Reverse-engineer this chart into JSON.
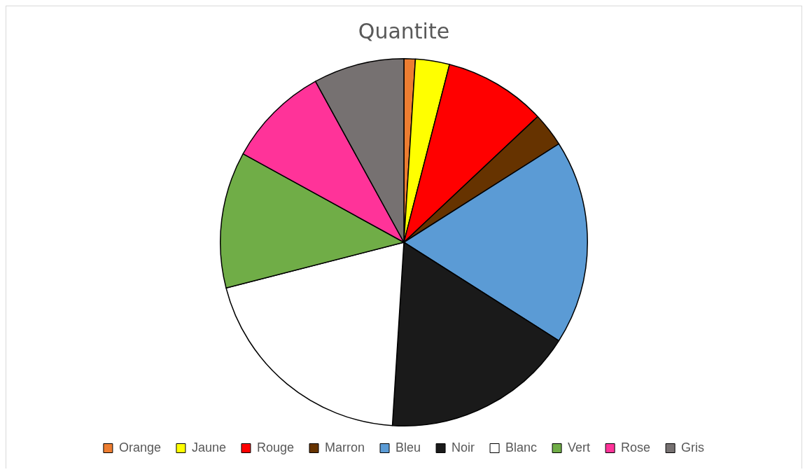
{
  "chart_data": {
    "type": "pie",
    "title": "Quantite",
    "categories": [
      "Orange",
      "Jaune",
      "Rouge",
      "Marron",
      "Bleu",
      "Noir",
      "Blanc",
      "Vert",
      "Rose",
      "Gris"
    ],
    "values": [
      1,
      3,
      9,
      3,
      18,
      17,
      20,
      12,
      9,
      8
    ],
    "colors": [
      "#ed7d31",
      "#ffff00",
      "#ff0000",
      "#663300",
      "#5b9bd5",
      "#1a1a1a",
      "#ffffff",
      "#70ad47",
      "#ff3399",
      "#767171"
    ],
    "legend": "bottom"
  }
}
